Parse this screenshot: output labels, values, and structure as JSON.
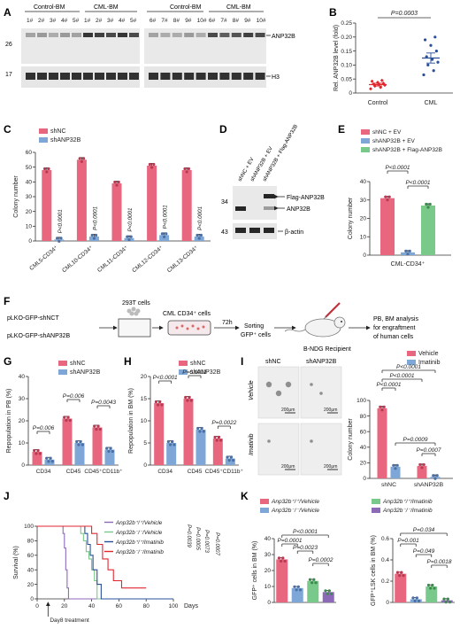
{
  "colors": {
    "pink": "#e8677f",
    "blue": "#7ea6d6",
    "green": "#79c98a",
    "purple": "#8d6ab8",
    "darkblue": "#2a4f9a",
    "red": "#e0262f",
    "blot_bg": "#e9e9e9"
  },
  "panel_letters": [
    "A",
    "B",
    "C",
    "D",
    "E",
    "F",
    "G",
    "H",
    "I",
    "J",
    "K"
  ],
  "panelA": {
    "left_headers": [
      "Control-BM",
      "CML-BM"
    ],
    "right_headers": [
      "Control-BM",
      "CML-BM"
    ],
    "left_lanes": [
      "1#",
      "2#",
      "3#",
      "4#",
      "5#",
      "1#",
      "2#",
      "3#",
      "4#",
      "5#"
    ],
    "right_lanes": [
      "6#",
      "7#",
      "8#",
      "9#",
      "10#",
      "6#",
      "7#",
      "8#",
      "9#",
      "10#"
    ],
    "mw": [
      "26",
      "17"
    ],
    "bands": [
      "ANP32B",
      "H3"
    ]
  },
  "panelB": {
    "ylabel": "Rel. ANP32B level (fold)",
    "pvalue": "P=0.0003",
    "groups": [
      "Control",
      "CML"
    ],
    "means": [
      0.03,
      0.125
    ],
    "sems": [
      0.005,
      0.018
    ],
    "ylim": [
      0,
      0.25
    ],
    "yticks": [
      "0",
      "0.05",
      "0.10",
      "0.15",
      "0.20",
      "0.25"
    ],
    "points": [
      [
        0.015,
        0.02,
        0.025,
        0.028,
        0.03,
        0.032,
        0.035,
        0.038,
        0.042,
        0.045
      ],
      [
        0.065,
        0.08,
        0.1,
        0.11,
        0.12,
        0.13,
        0.15,
        0.17,
        0.19,
        0.2
      ]
    ]
  },
  "panelC": {
    "legend": [
      "shNC",
      "shANP32B"
    ],
    "ylabel": "Colony number",
    "ylim": [
      0,
      60
    ],
    "yticks": [
      "0",
      "10",
      "20",
      "30",
      "40",
      "50",
      "60"
    ],
    "categories": [
      "CML5-CD34⁺",
      "CML10-CD34⁺",
      "CML11-CD34⁺",
      "CML12-CD34⁺",
      "CML13-CD34⁺"
    ],
    "series": [
      {
        "name": "shNC",
        "values": [
          48,
          55,
          39,
          51,
          48
        ]
      },
      {
        "name": "shANP32B",
        "values": [
          1,
          3,
          2,
          4,
          3
        ]
      }
    ],
    "pvalues": [
      "P<0.0001",
      "P<0.0001",
      "P<0.0001",
      "P<0.0001",
      "P<0.0001"
    ]
  },
  "panelD": {
    "lanes": [
      "shNC + EV",
      "shANP32B + EV",
      "shANP32B + Flag-ANP32B"
    ],
    "mw": [
      "34",
      "43"
    ],
    "bands": [
      "Flag-ANP32B",
      "ANP32B",
      "β-actin"
    ]
  },
  "panelE": {
    "legend": [
      "shNC + EV",
      "shANP32B + EV",
      "shANP32B + Flag-ANP32B"
    ],
    "ylabel": "Colony number",
    "ylim": [
      0,
      40
    ],
    "yticks": [
      "0",
      "10",
      "20",
      "30",
      "40"
    ],
    "xlabel": "CML-CD34⁺",
    "values": [
      31,
      1.5,
      27
    ],
    "pvalues": [
      "P<0.0001",
      "P<0.0001"
    ]
  },
  "panelF": {
    "constructs": [
      "pLKO-GFP-shNCT",
      "pLKO-GFP-shANP32B"
    ],
    "steps": [
      "293T cells",
      "CML CD34⁺ cells",
      "72h",
      "Sorting",
      "GFP⁺ cells",
      "B-NDG Recipient",
      "PB, BM analysis",
      "for engraftment",
      "of human cells"
    ]
  },
  "panelG": {
    "legend": [
      "shNC",
      "shANP32B"
    ],
    "ylabel": "Repopulation in PB (%)",
    "ylim": [
      0,
      40
    ],
    "yticks": [
      "0",
      "10",
      "20",
      "30",
      "40"
    ],
    "categories": [
      "CD34",
      "CD45",
      "CD45⁺CD11b⁺"
    ],
    "series": [
      {
        "name": "shNC",
        "values": [
          6,
          21,
          17
        ]
      },
      {
        "name": "shANP32B",
        "values": [
          2.5,
          10,
          7
        ]
      }
    ],
    "pvalues": [
      "P=0.006",
      "P=0.006",
      "P=0.0043"
    ]
  },
  "panelH": {
    "legend": [
      "shNC",
      "shANP32B"
    ],
    "ylabel": "Repopulation in BM (%)",
    "ylim": [
      0,
      20
    ],
    "yticks": [
      "0",
      "5",
      "10",
      "15",
      "20"
    ],
    "categories": [
      "CD34",
      "CD45",
      "CD45⁺CD11b⁺"
    ],
    "series": [
      {
        "name": "shNC",
        "values": [
          14,
          15,
          6
        ]
      },
      {
        "name": "shANP32B",
        "values": [
          5,
          8,
          1.5
        ]
      }
    ],
    "pvalues": [
      "P<0.0001",
      "P=0.0011",
      "P=0.0022"
    ]
  },
  "panelI": {
    "col_labels": [
      "shNC",
      "shANP32B"
    ],
    "row_labels": [
      "Vehicle",
      "Imatinib"
    ],
    "scale": "200μm",
    "legend": [
      "Vehicle",
      "Imatinib"
    ],
    "ylabel": "Colony number",
    "ylim": [
      0,
      100
    ],
    "yticks": [
      "0",
      "20",
      "40",
      "60",
      "80",
      "100"
    ],
    "categories": [
      "shNC",
      "shANP32B"
    ],
    "series": [
      {
        "name": "Vehicle",
        "values": [
          90,
          16
        ]
      },
      {
        "name": "Imatinib",
        "values": [
          15,
          2
        ]
      }
    ],
    "pvalues": [
      "P<0.0001",
      "P<0.0001",
      "P<0.0001",
      "P=0.0009",
      "P=0.0007"
    ]
  },
  "panelJ": {
    "legend": [
      "Anp32b⁺/⁺/Vehicle",
      "Anp32b⁻/⁻/Vehicle",
      "Anp32b⁺/⁺/Imatinib",
      "Anp32b⁻/⁻/Imatinib"
    ],
    "pvalues": [
      "P=0.0039",
      "P=0.0005",
      "P=0.0073",
      "P=0.0007"
    ],
    "ylabel": "Survival (%)",
    "xlabel": "Days",
    "annotation": "Day8 treatment",
    "xlim": [
      0,
      100
    ],
    "ylim": [
      0,
      100
    ],
    "xticks": [
      "0",
      "20",
      "40",
      "60",
      "80",
      "100"
    ],
    "yticks": [
      "0",
      "20",
      "40",
      "60",
      "80",
      "100"
    ],
    "series": [
      {
        "times": [
          0,
          19,
          20,
          21,
          22,
          23,
          100
        ],
        "surv": [
          100,
          90,
          70,
          40,
          15,
          0,
          0
        ]
      },
      {
        "times": [
          0,
          32,
          34,
          36,
          38,
          40,
          42,
          44,
          100
        ],
        "surv": [
          100,
          90,
          80,
          65,
          55,
          40,
          25,
          0,
          0
        ]
      },
      {
        "times": [
          0,
          35,
          37,
          39,
          41,
          44,
          47,
          100
        ],
        "surv": [
          100,
          90,
          75,
          60,
          40,
          20,
          0,
          0
        ]
      },
      {
        "times": [
          0,
          40,
          44,
          48,
          52,
          56,
          62,
          80
        ],
        "surv": [
          100,
          90,
          75,
          55,
          40,
          25,
          15,
          15
        ]
      }
    ]
  },
  "panelK": {
    "legend": [
      "Anp32b⁺/⁺/Vehicle",
      "Anp32b⁻/⁻/Vehicle",
      "Anp32b⁺/⁺/Imatinib",
      "Anp32b⁻/⁻/Imatinib"
    ],
    "left": {
      "ylabel": "GFP⁺ cells in BM (%)",
      "ylim": [
        0,
        40
      ],
      "yticks": [
        "0",
        "10",
        "20",
        "30",
        "40"
      ],
      "values": [
        27,
        9,
        13.5,
        6.5
      ],
      "pvalues": [
        "P=0.0001",
        "P<0.0001",
        "P=0.0023",
        "P=0.0002"
      ]
    },
    "right": {
      "ylabel": "GFP⁺LSK cells in BM (%)",
      "ylim": [
        0,
        0.6
      ],
      "yticks": [
        "0",
        "0.2",
        "0.4",
        "0.6"
      ],
      "values": [
        0.27,
        0.03,
        0.15,
        0.02
      ],
      "pvalues": [
        "P=0.034",
        "P=0.001",
        "P=0.049",
        "P=0.0018"
      ]
    }
  }
}
